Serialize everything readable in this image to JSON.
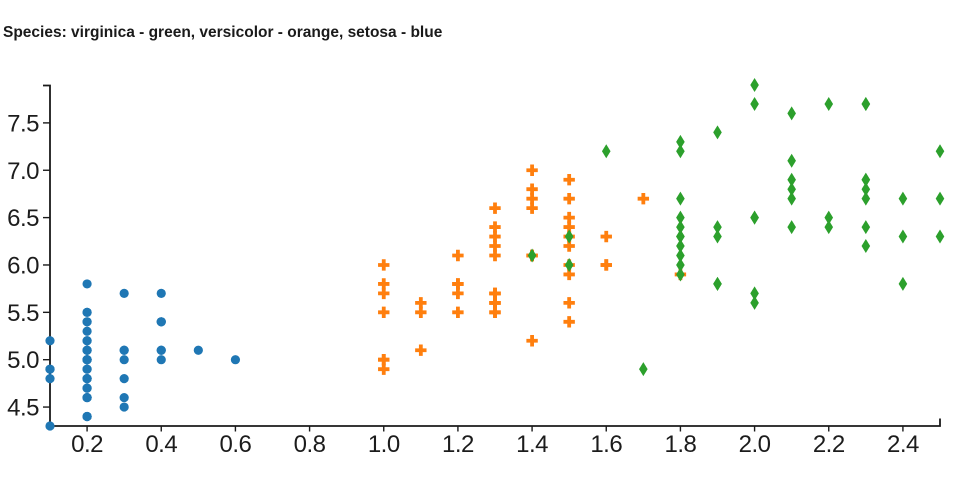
{
  "title": {
    "text": "Species: virginica - green, versicolor - orange, setosa - blue"
  },
  "chart_data": {
    "type": "scatter",
    "title": "Species: virginica - green, versicolor - orange, setosa - blue",
    "xlabel": "",
    "ylabel": "",
    "xlim": [
      0.1,
      2.5
    ],
    "ylim": [
      4.3,
      7.9
    ],
    "xticks": [
      0.2,
      0.4,
      0.6,
      0.8,
      1.0,
      1.2,
      1.4,
      1.6,
      1.8,
      2.0,
      2.2,
      2.4
    ],
    "yticks": [
      4.5,
      5.0,
      5.5,
      6.0,
      6.5,
      7.0,
      7.5
    ],
    "grid": false,
    "legend_position": "none",
    "axis_color": "#1a1a1a",
    "series": [
      {
        "name": "setosa",
        "marker": "circle",
        "color": "#1f77b4",
        "points": [
          [
            0.2,
            5.1
          ],
          [
            0.2,
            4.9
          ],
          [
            0.2,
            4.7
          ],
          [
            0.2,
            4.6
          ],
          [
            0.2,
            5.0
          ],
          [
            0.4,
            5.4
          ],
          [
            0.3,
            4.6
          ],
          [
            0.2,
            5.0
          ],
          [
            0.2,
            4.4
          ],
          [
            0.1,
            4.9
          ],
          [
            0.2,
            5.4
          ],
          [
            0.2,
            4.8
          ],
          [
            0.1,
            4.8
          ],
          [
            0.1,
            4.3
          ],
          [
            0.2,
            5.8
          ],
          [
            0.4,
            5.7
          ],
          [
            0.4,
            5.4
          ],
          [
            0.3,
            5.1
          ],
          [
            0.3,
            5.7
          ],
          [
            0.3,
            5.1
          ],
          [
            0.2,
            5.4
          ],
          [
            0.4,
            5.1
          ],
          [
            0.2,
            4.6
          ],
          [
            0.5,
            5.1
          ],
          [
            0.2,
            4.8
          ],
          [
            0.2,
            5.0
          ],
          [
            0.4,
            5.0
          ],
          [
            0.2,
            5.2
          ],
          [
            0.2,
            5.2
          ],
          [
            0.2,
            4.7
          ],
          [
            0.2,
            4.8
          ],
          [
            0.4,
            5.4
          ],
          [
            0.1,
            5.2
          ],
          [
            0.2,
            5.5
          ],
          [
            0.2,
            4.9
          ],
          [
            0.2,
            5.0
          ],
          [
            0.2,
            5.5
          ],
          [
            0.1,
            4.9
          ],
          [
            0.2,
            4.4
          ],
          [
            0.2,
            5.1
          ],
          [
            0.3,
            5.0
          ],
          [
            0.3,
            4.5
          ],
          [
            0.2,
            4.4
          ],
          [
            0.6,
            5.0
          ],
          [
            0.4,
            5.1
          ],
          [
            0.3,
            4.8
          ],
          [
            0.2,
            5.1
          ],
          [
            0.2,
            4.6
          ],
          [
            0.2,
            5.3
          ],
          [
            0.2,
            5.0
          ]
        ]
      },
      {
        "name": "versicolor",
        "marker": "plus",
        "color": "#ff7f0e",
        "points": [
          [
            1.4,
            7.0
          ],
          [
            1.5,
            6.4
          ],
          [
            1.5,
            6.9
          ],
          [
            1.3,
            5.5
          ],
          [
            1.5,
            6.5
          ],
          [
            1.3,
            5.7
          ],
          [
            1.6,
            6.3
          ],
          [
            1.0,
            4.9
          ],
          [
            1.3,
            6.6
          ],
          [
            1.4,
            5.2
          ],
          [
            1.0,
            5.0
          ],
          [
            1.5,
            5.9
          ],
          [
            1.0,
            6.0
          ],
          [
            1.4,
            6.1
          ],
          [
            1.3,
            5.6
          ],
          [
            1.4,
            6.7
          ],
          [
            1.5,
            5.6
          ],
          [
            1.0,
            5.8
          ],
          [
            1.5,
            6.2
          ],
          [
            1.1,
            5.6
          ],
          [
            1.8,
            5.9
          ],
          [
            1.3,
            6.1
          ],
          [
            1.5,
            6.3
          ],
          [
            1.2,
            6.1
          ],
          [
            1.3,
            6.4
          ],
          [
            1.4,
            6.6
          ],
          [
            1.4,
            6.8
          ],
          [
            1.7,
            6.7
          ],
          [
            1.5,
            6.0
          ],
          [
            1.0,
            5.7
          ],
          [
            1.1,
            5.5
          ],
          [
            1.0,
            5.5
          ],
          [
            1.2,
            5.8
          ],
          [
            1.6,
            6.0
          ],
          [
            1.5,
            5.4
          ],
          [
            1.6,
            6.0
          ],
          [
            1.5,
            6.7
          ],
          [
            1.3,
            6.3
          ],
          [
            1.3,
            5.6
          ],
          [
            1.3,
            5.5
          ],
          [
            1.2,
            5.5
          ],
          [
            1.4,
            6.1
          ],
          [
            1.2,
            5.8
          ],
          [
            1.0,
            5.0
          ],
          [
            1.3,
            5.6
          ],
          [
            1.2,
            5.7
          ],
          [
            1.3,
            5.7
          ],
          [
            1.3,
            6.2
          ],
          [
            1.1,
            5.1
          ],
          [
            1.3,
            5.7
          ]
        ]
      },
      {
        "name": "virginica",
        "marker": "thin-diamond",
        "color": "#2ca02c",
        "points": [
          [
            2.5,
            6.3
          ],
          [
            1.9,
            5.8
          ],
          [
            2.1,
            7.1
          ],
          [
            1.8,
            6.3
          ],
          [
            2.2,
            6.5
          ],
          [
            2.1,
            7.6
          ],
          [
            1.7,
            4.9
          ],
          [
            1.8,
            7.3
          ],
          [
            1.8,
            6.7
          ],
          [
            2.5,
            7.2
          ],
          [
            2.0,
            6.5
          ],
          [
            1.9,
            6.4
          ],
          [
            2.1,
            6.8
          ],
          [
            2.0,
            5.7
          ],
          [
            2.4,
            5.8
          ],
          [
            2.3,
            6.4
          ],
          [
            1.8,
            6.5
          ],
          [
            2.2,
            7.7
          ],
          [
            2.3,
            7.7
          ],
          [
            1.5,
            6.0
          ],
          [
            2.3,
            6.9
          ],
          [
            2.0,
            5.6
          ],
          [
            2.0,
            7.7
          ],
          [
            1.8,
            6.3
          ],
          [
            2.1,
            6.7
          ],
          [
            1.8,
            7.2
          ],
          [
            1.8,
            6.2
          ],
          [
            1.8,
            6.1
          ],
          [
            2.1,
            6.4
          ],
          [
            1.6,
            7.2
          ],
          [
            1.9,
            7.4
          ],
          [
            2.0,
            7.9
          ],
          [
            2.2,
            6.4
          ],
          [
            1.5,
            6.3
          ],
          [
            1.4,
            6.1
          ],
          [
            2.3,
            7.7
          ],
          [
            2.4,
            6.3
          ],
          [
            1.8,
            6.4
          ],
          [
            1.8,
            6.0
          ],
          [
            2.1,
            6.9
          ],
          [
            2.4,
            6.7
          ],
          [
            2.3,
            6.9
          ],
          [
            1.9,
            5.8
          ],
          [
            2.3,
            6.8
          ],
          [
            2.5,
            6.7
          ],
          [
            2.3,
            6.7
          ],
          [
            1.9,
            6.3
          ],
          [
            2.0,
            6.5
          ],
          [
            2.3,
            6.2
          ],
          [
            1.8,
            5.9
          ]
        ]
      }
    ]
  }
}
